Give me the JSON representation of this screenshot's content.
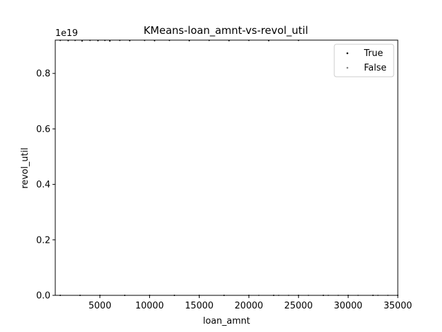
{
  "chart_data": {
    "type": "scatter",
    "title": "KMeans-loan_amnt-vs-revol_util",
    "xlabel": "loan_amnt",
    "ylabel": "revol_util",
    "y_offset_label": "1e19",
    "xlim": [
      500,
      35000
    ],
    "ylim": [
      0,
      0.92
    ],
    "x_ticks": [
      5000,
      10000,
      15000,
      20000,
      25000,
      30000,
      35000
    ],
    "x_tick_labels": [
      "5000",
      "10000",
      "15000",
      "20000",
      "25000",
      "30000",
      "35000"
    ],
    "y_ticks": [
      0.0,
      0.2,
      0.4,
      0.6,
      0.8
    ],
    "y_tick_labels": [
      "0.0",
      "0.2",
      "0.4",
      "0.6",
      "0.8"
    ],
    "grid": false,
    "legend_position": "top-right",
    "series": [
      {
        "name": "True",
        "color": "#000000",
        "points": [
          [
            1000,
            0.919
          ],
          [
            1800,
            0.918
          ],
          [
            2500,
            0.919
          ],
          [
            3200,
            0.917
          ],
          [
            4000,
            0.919
          ],
          [
            4800,
            0.918
          ],
          [
            5500,
            0.919
          ],
          [
            6000,
            0.917
          ],
          [
            7000,
            0.919
          ],
          [
            8000,
            0.918
          ],
          [
            9500,
            0.919
          ],
          [
            10500,
            0.918
          ],
          [
            12000,
            0.919
          ],
          [
            14000,
            0.918
          ],
          [
            16000,
            0.919
          ],
          [
            18000,
            0.918
          ],
          [
            20000,
            0.919
          ],
          [
            22000,
            0.918
          ],
          [
            25000,
            0.919
          ],
          [
            1000,
            0.0
          ],
          [
            3000,
            0.0
          ],
          [
            5000,
            0.0
          ],
          [
            7500,
            0.0
          ],
          [
            10000,
            0.0
          ],
          [
            12500,
            0.0
          ],
          [
            15000,
            0.0
          ],
          [
            17500,
            0.0
          ],
          [
            20000,
            0.0
          ],
          [
            22500,
            0.0
          ],
          [
            25000,
            0.0
          ],
          [
            27500,
            0.0
          ],
          [
            30000,
            0.0
          ],
          [
            32500,
            0.0
          ],
          [
            35000,
            0.0
          ]
        ]
      },
      {
        "name": "False",
        "color": "#808080",
        "points": [
          [
            21000,
            0.0
          ],
          [
            23000,
            0.0
          ],
          [
            24000,
            0.0
          ],
          [
            26000,
            0.0
          ],
          [
            28000,
            0.0
          ],
          [
            29000,
            0.0
          ],
          [
            31000,
            0.0
          ],
          [
            33000,
            0.0
          ],
          [
            34000,
            0.0
          ],
          [
            35000,
            0.0
          ]
        ]
      }
    ]
  }
}
